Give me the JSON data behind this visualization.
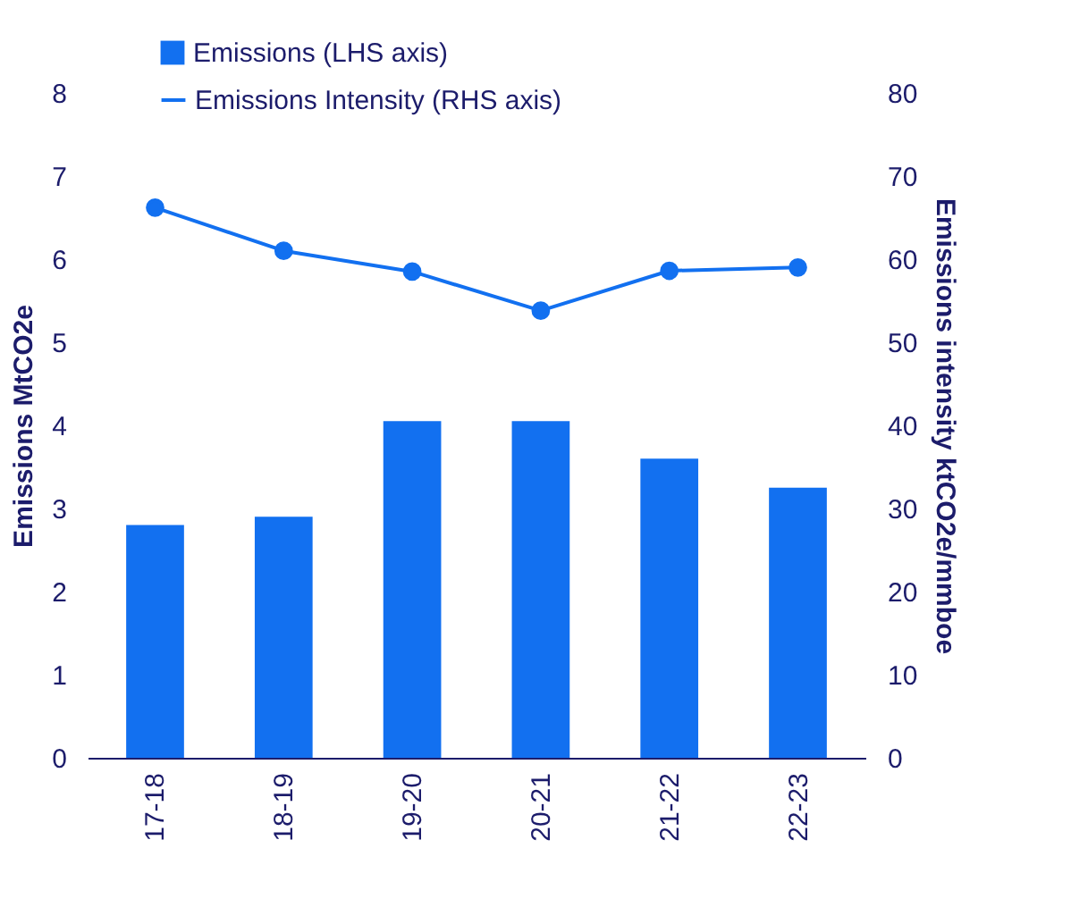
{
  "chart_data": {
    "type": "bar",
    "categories": [
      "17-18",
      "18-19",
      "19-20",
      "20-21",
      "21-22",
      "22-23"
    ],
    "ylabel": "Emissions MtCO2e",
    "y2label": "Emissions intensity ktCO2e/mmboe",
    "ylim": [
      0,
      8
    ],
    "yticks": [
      0,
      1,
      2,
      3,
      4,
      5,
      6,
      7,
      8
    ],
    "y2lim": [
      0,
      80
    ],
    "y2ticks": [
      0,
      10,
      20,
      30,
      40,
      50,
      60,
      70,
      80
    ],
    "legend": "top left",
    "grid": false,
    "marker": "circle",
    "series": [
      {
        "name": "Emissions (LHS axis)",
        "color": "#1270f0",
        "values": [
          2.8,
          2.9,
          4.05,
          4.05,
          3.6,
          3.25
        ]
      },
      {
        "name": "Emissions Intensity (RHS axis)",
        "type": "line",
        "axis": "y2",
        "color": "#1270f0",
        "values": [
          66.2,
          61,
          58.5,
          53.8,
          58.6,
          59
        ]
      }
    ]
  }
}
